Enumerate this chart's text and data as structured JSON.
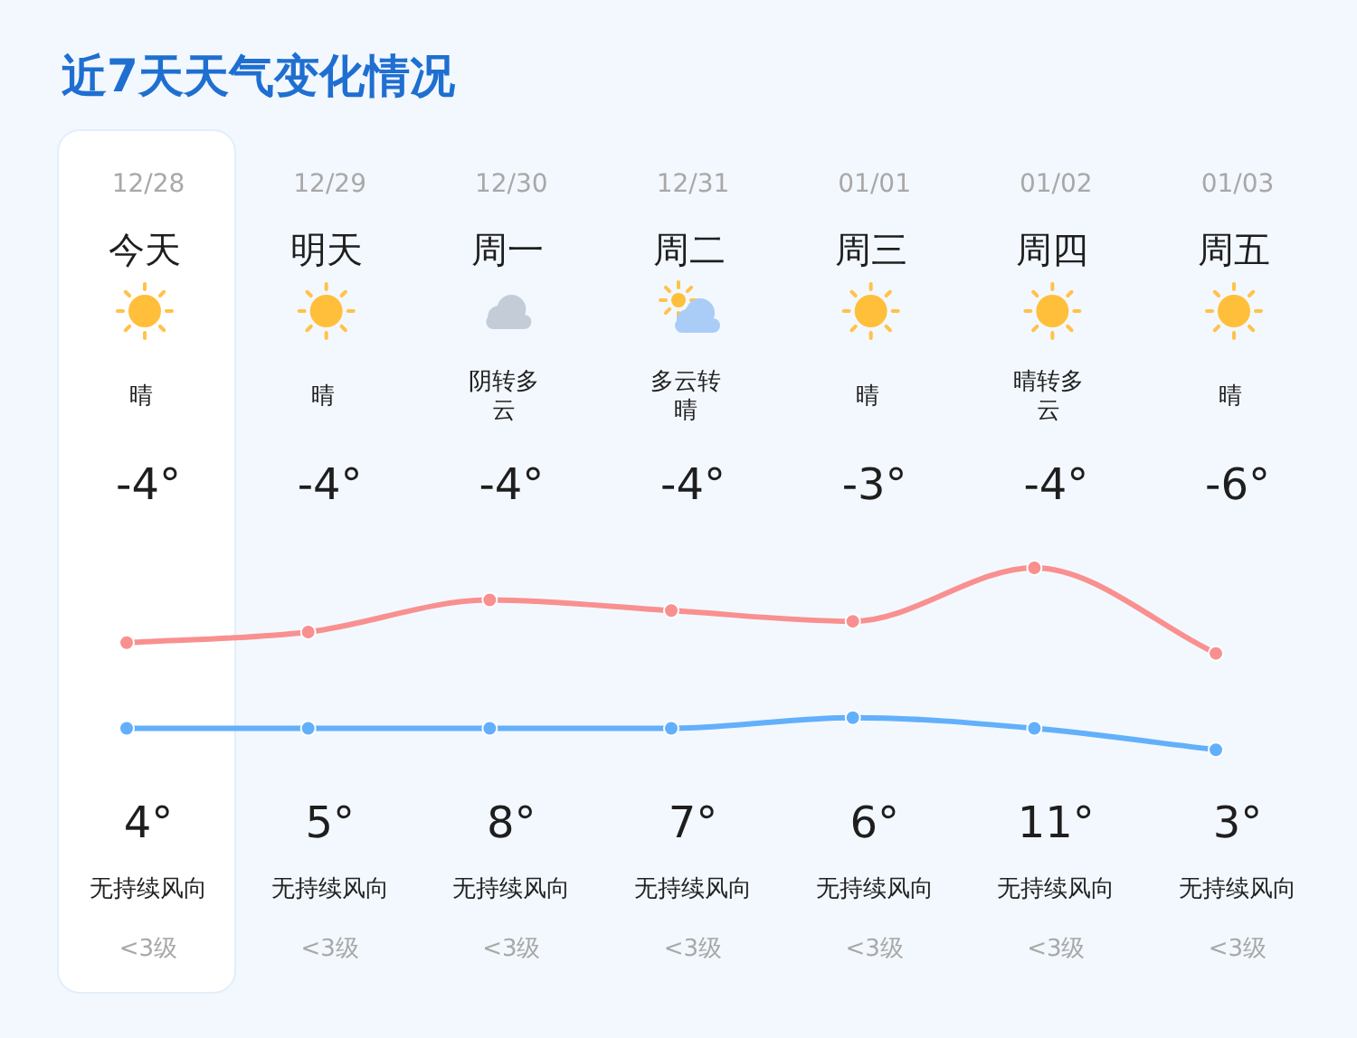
{
  "chart_data": {
    "type": "line",
    "title": "近7天天气变化情况",
    "categories": [
      "12/28",
      "12/29",
      "12/30",
      "12/31",
      "01/01",
      "01/02",
      "01/03"
    ],
    "series": [
      {
        "color": "#f99090",
        "values": [
          4,
          5,
          8,
          7,
          6,
          11,
          3
        ],
        "value_labels": [
          "4°",
          "5°",
          "8°",
          "7°",
          "6°",
          "11°",
          "3°"
        ]
      },
      {
        "color": "#62b0fb",
        "values": [
          -4,
          -4,
          -4,
          -4,
          -3,
          -4,
          -6
        ],
        "value_labels": [
          "-4°",
          "-4°",
          "-4°",
          "-4°",
          "-3°",
          "-4°",
          "-6°"
        ]
      }
    ],
    "tick_labels": "x",
    "marker": "circle",
    "line_style": "solid",
    "annotations": [
      "今天",
      "明天",
      "周一",
      "周二",
      "周三",
      "周四",
      "周五",
      "晴",
      "晴",
      "阴转多云",
      "多云转晴",
      "晴",
      "晴转多云",
      "晴",
      "无持续风向",
      "无持续风向",
      "无持续风向",
      "无持续风向",
      "无持续风向",
      "无持续风向",
      "无持续风向",
      "<3级",
      "<3级",
      "<3级",
      "<3级",
      "<3级",
      "<3级",
      "<3级"
    ]
  }
}
